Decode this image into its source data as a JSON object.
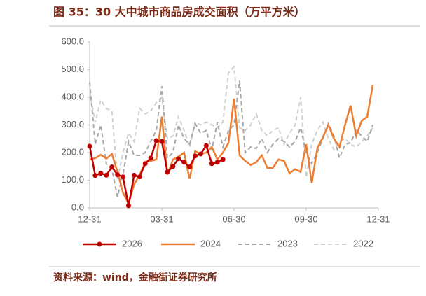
{
  "chart_data": {
    "type": "line",
    "title": "图 35：30 大中城市商品房成交面积（万平方米）",
    "source": "资料来源：wind，金融街证券研究所",
    "x": [
      0,
      1,
      2,
      3,
      4,
      5,
      6,
      7,
      8,
      9,
      10,
      11,
      12,
      13,
      14,
      15,
      16,
      17,
      18,
      19,
      20,
      21,
      22,
      23,
      24,
      25,
      26,
      27,
      28,
      29,
      30,
      31,
      32,
      33,
      34,
      35,
      36,
      37,
      38,
      39,
      40,
      41,
      42,
      43,
      44,
      45,
      46,
      47,
      48,
      49,
      50,
      51
    ],
    "xlim": [
      0,
      52
    ],
    "xticks": [
      {
        "value": 0,
        "label": "12-31"
      },
      {
        "value": 13,
        "label": "03-31"
      },
      {
        "value": 26,
        "label": "06-30"
      },
      {
        "value": 39,
        "label": "09-30"
      },
      {
        "value": 52,
        "label": "12-31"
      }
    ],
    "ylim": [
      0,
      600
    ],
    "yticks": [
      {
        "value": 0,
        "label": "0.0"
      },
      {
        "value": 100,
        "label": "100.0"
      },
      {
        "value": 200,
        "label": "200.0"
      },
      {
        "value": 300,
        "label": "300.0"
      },
      {
        "value": 400,
        "label": "400.0"
      },
      {
        "value": 500,
        "label": "500.0"
      },
      {
        "value": 600,
        "label": "600.0"
      }
    ],
    "legend": "bottom",
    "series": [
      {
        "name": "2026",
        "color": "#c00000",
        "style": "solid-marker",
        "values": [
          223,
          117,
          125,
          118,
          148,
          120,
          112,
          8,
          118,
          112,
          160,
          180,
          243,
          240,
          130,
          150,
          178,
          165,
          148,
          188,
          195,
          225,
          160,
          165,
          175,
          null,
          null,
          null,
          null,
          null,
          null,
          null,
          null,
          null,
          null,
          null,
          null,
          null,
          null,
          null,
          null,
          null,
          null,
          null,
          null,
          null,
          null,
          null,
          null,
          null,
          null,
          null
        ]
      },
      {
        "name": "2024",
        "color": "#ed7d31",
        "style": "solid",
        "values": [
          175,
          180,
          192,
          178,
          195,
          130,
          55,
          15,
          85,
          120,
          165,
          170,
          175,
          330,
          120,
          175,
          185,
          200,
          105,
          205,
          195,
          200,
          220,
          175,
          200,
          235,
          395,
          190,
          170,
          155,
          165,
          190,
          145,
          145,
          175,
          170,
          125,
          140,
          130,
          230,
          90,
          215,
          255,
          300,
          250,
          220,
          300,
          370,
          260,
          315,
          330,
          445
        ]
      },
      {
        "name": "2023",
        "color": "#a6a6a6",
        "style": "dashed",
        "values": [
          455,
          230,
          300,
          160,
          140,
          40,
          120,
          240,
          190,
          190,
          200,
          240,
          280,
          440,
          180,
          200,
          300,
          250,
          230,
          305,
          270,
          280,
          210,
          310,
          220,
          280,
          300,
          460,
          200,
          220,
          215,
          250,
          200,
          230,
          250,
          240,
          220,
          240,
          290,
          200,
          160,
          200,
          250,
          305,
          260,
          180,
          230,
          235,
          280,
          260,
          240,
          300
        ]
      },
      {
        "name": "2022",
        "color": "#d0d0d0",
        "style": "dashed",
        "values": [
          420,
          310,
          390,
          360,
          350,
          100,
          200,
          270,
          240,
          360,
          340,
          350,
          380,
          400,
          250,
          260,
          330,
          280,
          220,
          310,
          300,
          310,
          300,
          290,
          310,
          490,
          510,
          290,
          280,
          300,
          340,
          280,
          260,
          280,
          290,
          230,
          270,
          300,
          400,
          110,
          230,
          280,
          310,
          250,
          210,
          240,
          250,
          230,
          220,
          240,
          260,
          290
        ]
      }
    ]
  }
}
